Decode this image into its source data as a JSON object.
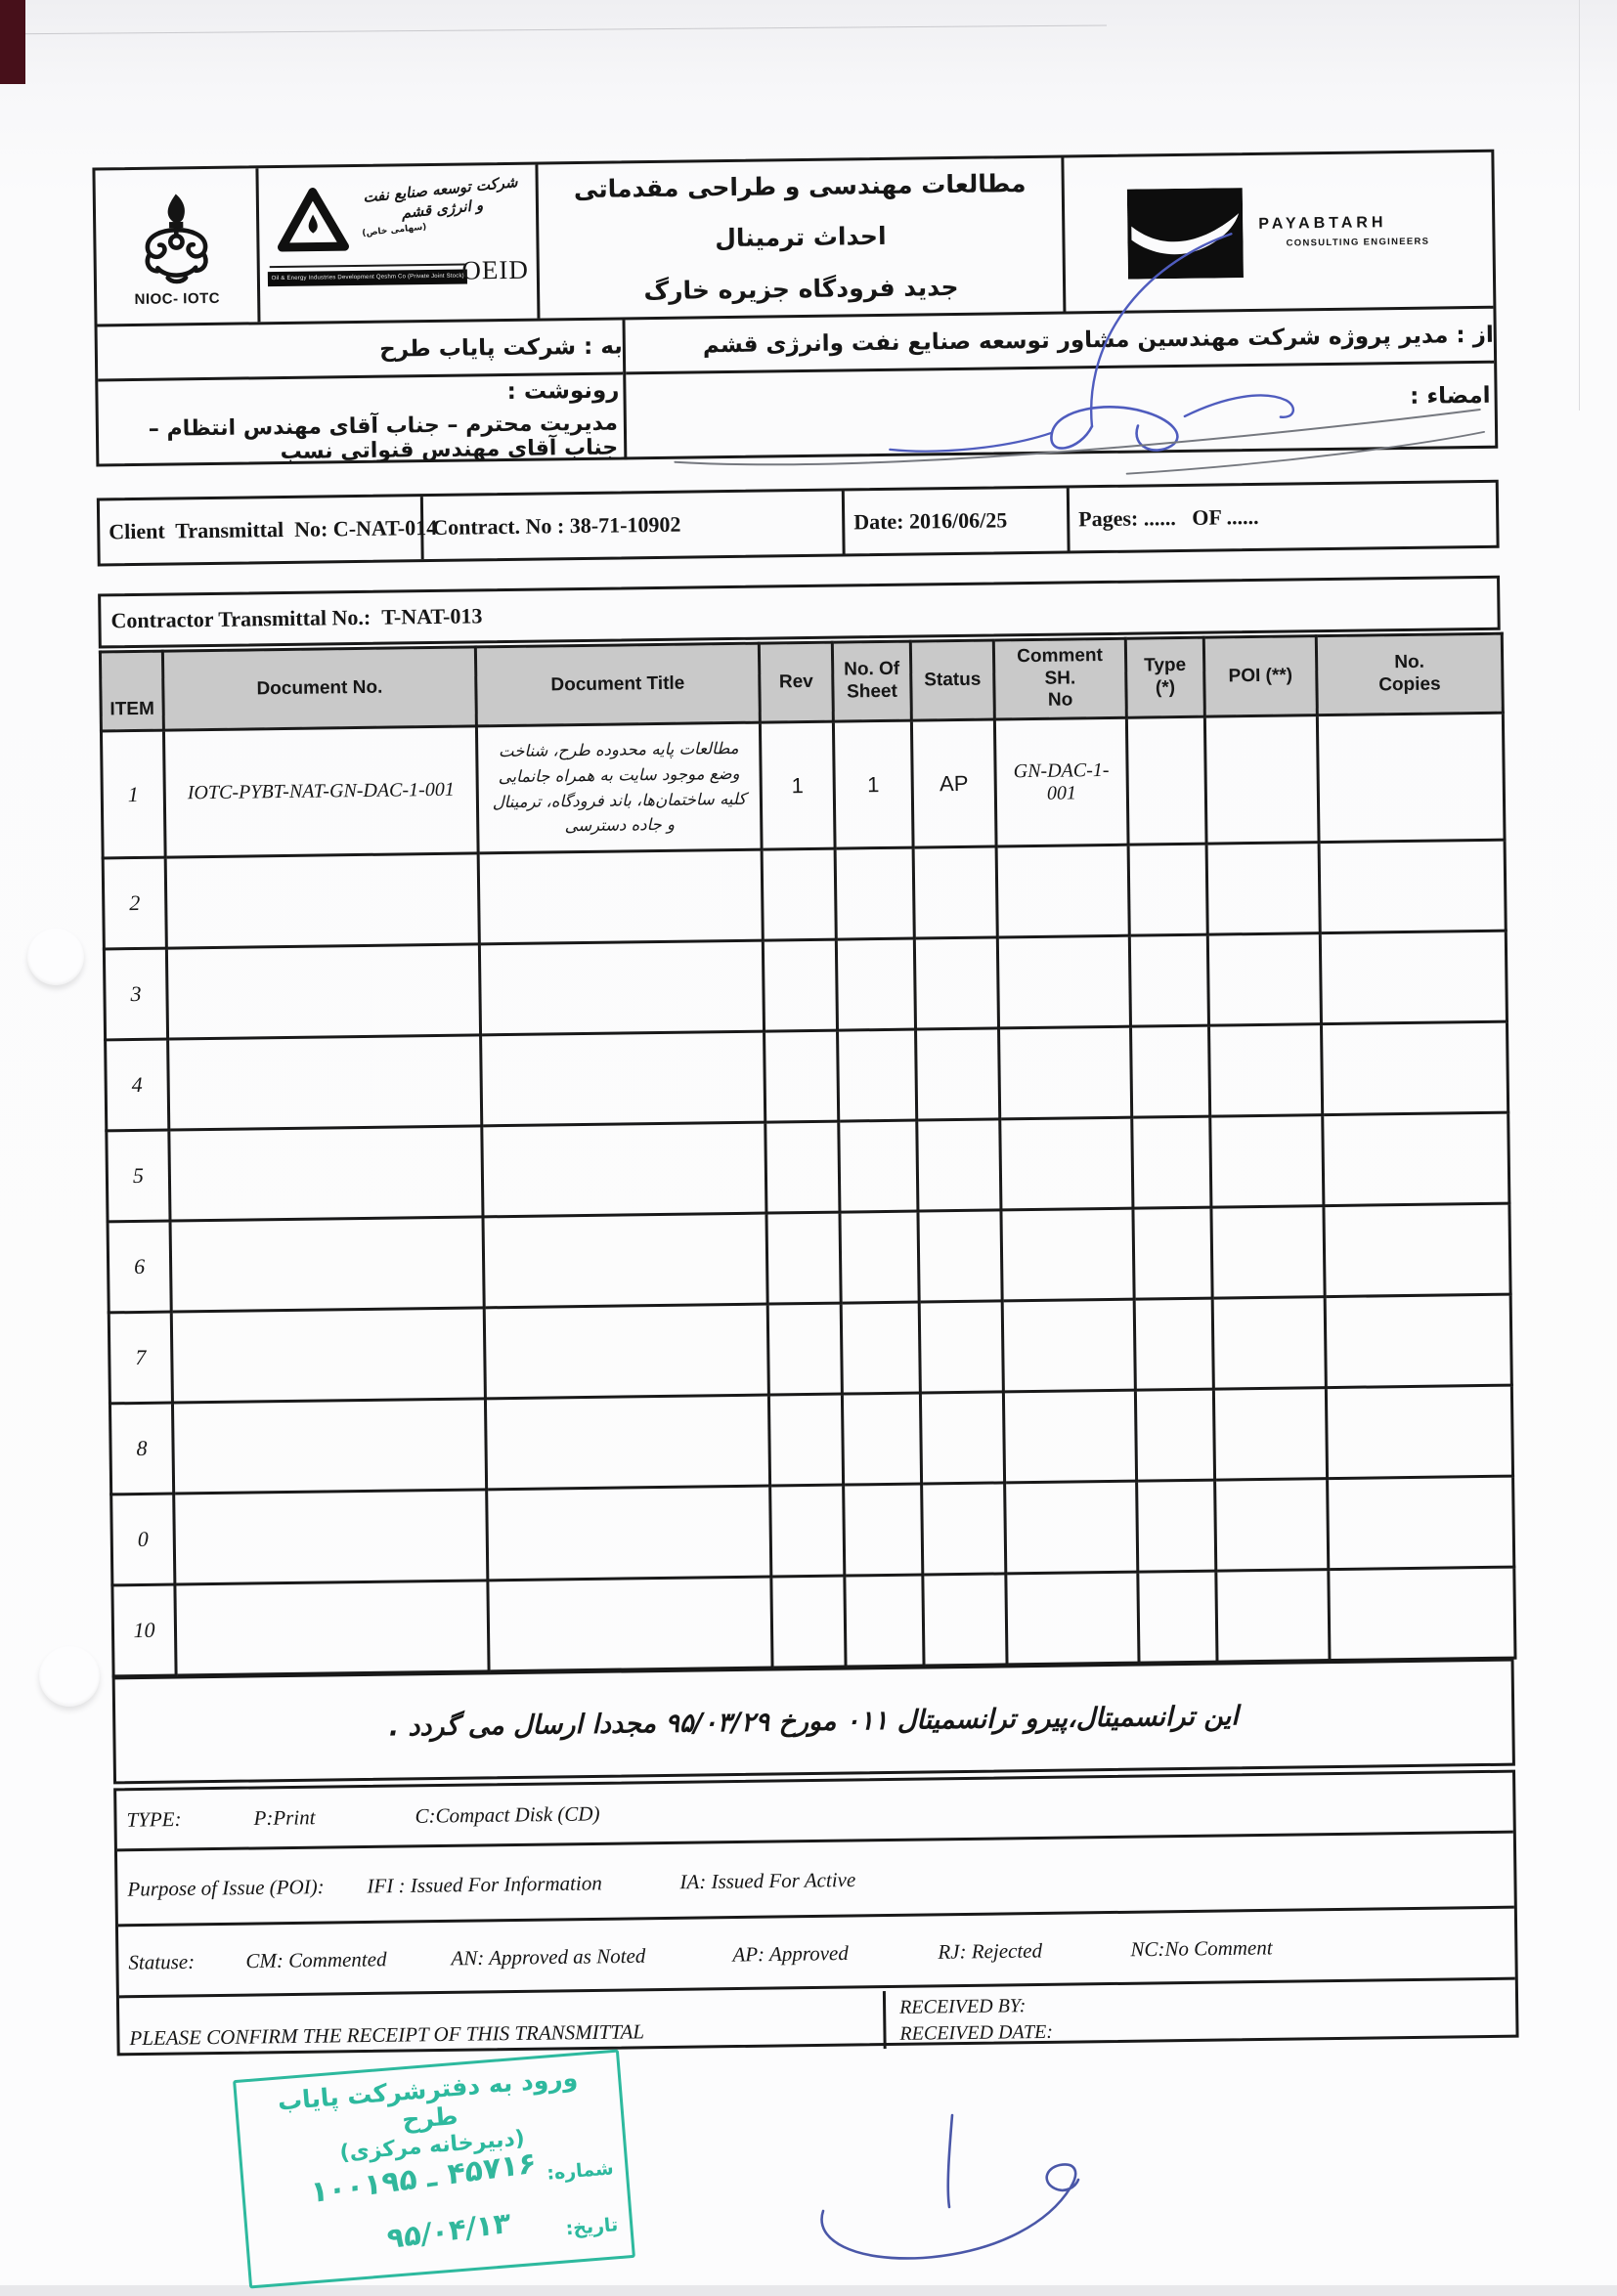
{
  "page": {
    "background": "#e8e8eb",
    "paper_color": "#fbfbfc",
    "table_header_fill": "#c9c9c9",
    "line_color": "#191919",
    "pen_blue": "#4f5cbe",
    "pen_gray": "#75787f"
  },
  "header": {
    "nioc": {
      "caption": "NIOC- IOTC"
    },
    "oeid": {
      "calligraphy": "شرکت توسعه صنایع نفت و انرژی قشم",
      "calligraphy_small": "(سهامی خاص)",
      "bar_text": "Oil & Energy Industries Development Qeshm Co (Private Joint Stock)",
      "wordmark": "OEID"
    },
    "payabtarh": {
      "wordmark": "PAYABTARH",
      "subtitle": "CONSULTING ENGINEERS"
    },
    "title_line1": "مطالعات مهندسی و طراحی مقدماتی احداث ترمینال",
    "title_line2": "جدید فرودگاه جزیره خارگ",
    "from": "از : مدیر پروژه شرکت مهندسین مشاور توسعه صنایع نفت وانرژی قشم",
    "signature_label": "امضاء :",
    "to": "به : شرکت پایاب طرح",
    "cc_label": "رونوشت :",
    "cc_value": "مدیریت محترم – جناب آقای مهندس انتظام – جناب آقای مهندس قنواتی نسب"
  },
  "meta": {
    "client_label": "Client  Transmittal  No: ",
    "client_no": "C-NAT-014",
    "contract_label": "Contract. No : ",
    "contract_no": "38-71-10902",
    "date_label": "Date: ",
    "date_value": "2016/06/25",
    "pages_text": "Pages: ......   OF ......",
    "contractor_label": "Contractor Transmittal No.:  ",
    "contractor_no": "T-NAT-013"
  },
  "table": {
    "headers": [
      "ITEM",
      "Document No.",
      "Document Title",
      "Rev",
      "No. Of\nSheet",
      "Status",
      "Comment SH.\nNo",
      "Type\n(*)",
      "POI   (**)",
      "No.\nCopies"
    ],
    "column_keys": [
      "item",
      "doc_no",
      "title",
      "rev",
      "sheets",
      "status",
      "comment",
      "type",
      "poi",
      "copies"
    ],
    "rows": [
      {
        "item": "1",
        "doc_no": "IOTC-PYBT-NAT-GN-DAC-1-001",
        "title": "مطالعات پایه محدوده طرح، شناخت وضع موجود سایت به همراه جانمایی کلیه ساختمان‌ها، باند فرودگاه، ترمینال و جاده دسترسی",
        "rev": "1",
        "sheets": "1",
        "status": "AP",
        "comment": "GN-DAC-1-001",
        "type": "",
        "poi": "",
        "copies": ""
      },
      {
        "item": "2",
        "doc_no": "",
        "title": "",
        "rev": "",
        "sheets": "",
        "status": "",
        "comment": "",
        "type": "",
        "poi": "",
        "copies": ""
      },
      {
        "item": "3",
        "doc_no": "",
        "title": "",
        "rev": "",
        "sheets": "",
        "status": "",
        "comment": "",
        "type": "",
        "poi": "",
        "copies": ""
      },
      {
        "item": "4",
        "doc_no": "",
        "title": "",
        "rev": "",
        "sheets": "",
        "status": "",
        "comment": "",
        "type": "",
        "poi": "",
        "copies": ""
      },
      {
        "item": "5",
        "doc_no": "",
        "title": "",
        "rev": "",
        "sheets": "",
        "status": "",
        "comment": "",
        "type": "",
        "poi": "",
        "copies": ""
      },
      {
        "item": "6",
        "doc_no": "",
        "title": "",
        "rev": "",
        "sheets": "",
        "status": "",
        "comment": "",
        "type": "",
        "poi": "",
        "copies": ""
      },
      {
        "item": "7",
        "doc_no": "",
        "title": "",
        "rev": "",
        "sheets": "",
        "status": "",
        "comment": "",
        "type": "",
        "poi": "",
        "copies": ""
      },
      {
        "item": "8",
        "doc_no": "",
        "title": "",
        "rev": "",
        "sheets": "",
        "status": "",
        "comment": "",
        "type": "",
        "poi": "",
        "copies": ""
      },
      {
        "item": "0",
        "doc_no": "",
        "title": "",
        "rev": "",
        "sheets": "",
        "status": "",
        "comment": "",
        "type": "",
        "poi": "",
        "copies": ""
      },
      {
        "item": "10",
        "doc_no": "",
        "title": "",
        "rev": "",
        "sheets": "",
        "status": "",
        "comment": "",
        "type": "",
        "poi": "",
        "copies": ""
      }
    ]
  },
  "note": {
    "text": "این ترانسمیتال،پیرو ترانسمیتال ۰۱۱ مورخ ۹۵/۰۳/۲۹ مجددا ارسال می گردد ."
  },
  "legend": {
    "type_label": "TYPE:",
    "type_items": [
      "P:Print",
      "C:Compact Disk (CD)"
    ],
    "poi_label": "Purpose of  Issue (POI):",
    "poi_items": [
      "IFI : Issued For Information",
      "IA: Issued For Active"
    ],
    "status_label": "Statuse:",
    "status_items": [
      "CM: Commented",
      "AN: Approved as Noted",
      "AP: Approved",
      "RJ: Rejected",
      "NC:No Comment"
    ],
    "confirm_text": "PLEASE CONFIRM THE RECEIPT OF THIS TRANSMITTAL",
    "received_by": "RECEIVED BY:",
    "received_date": "RECEIVED DATE:"
  },
  "stamp": {
    "color": "#2db99e",
    "line1": "ورود به دفترشرکت پایاب طرح",
    "line2": "(دبیرخانه مرکزی)",
    "number_label": "شماره:",
    "number_value": "۴۵۷۱۶ ـ ۱۰۰۱۹۵",
    "date_label": "تاریخ:",
    "date_value": "۹۵/۰۴/۱۳"
  }
}
